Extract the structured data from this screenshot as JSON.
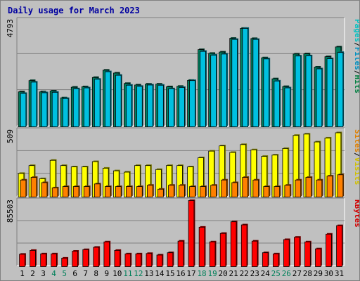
{
  "chart_data": {
    "type": "bar",
    "title": "Daily usage for March 2023",
    "days": [
      "1",
      "2",
      "3",
      "4",
      "5",
      "6",
      "7",
      "8",
      "9",
      "10",
      "11",
      "12",
      "13",
      "14",
      "15",
      "16",
      "17",
      "18",
      "19",
      "20",
      "21",
      "22",
      "23",
      "24",
      "25",
      "26",
      "27",
      "28",
      "29",
      "30",
      "31"
    ],
    "weekend_days": [
      4,
      5,
      11,
      12,
      18,
      19,
      25,
      26
    ],
    "panels": [
      {
        "id": "top",
        "ymax_label": "4793",
        "ymax": 4793,
        "legend": [
          {
            "text": "Pages",
            "color": "#00c0c0"
          },
          {
            "text": "/",
            "color": "#000000"
          },
          {
            "text": "Files",
            "color": "#0090c0"
          },
          {
            "text": "/",
            "color": "#000000"
          },
          {
            "text": "Hits",
            "color": "#008040"
          }
        ],
        "series": [
          {
            "name": "Hits",
            "color": "#008060",
            "values": [
              1580,
              2090,
              1580,
              1620,
              1310,
              1790,
              1810,
              2230,
              2560,
              2430,
              1960,
              1890,
              1930,
              1930,
              1810,
              1830,
              2100,
              3490,
              3320,
              3380,
              4000,
              4450,
              3990,
              3120,
              2170,
              1820,
              3290,
              3300,
              2700,
              3170,
              3610
            ]
          },
          {
            "name": "Files",
            "color": "#00c0e0",
            "values": [
              1510,
              2020,
              1540,
              1560,
              1280,
              1720,
              1760,
              2150,
              2490,
              2330,
              1880,
              1830,
              1890,
              1880,
              1720,
              1780,
              2090,
              3410,
              3240,
              3290,
              3950,
              4450,
              3950,
              3070,
              2070,
              1760,
              3200,
              3210,
              2620,
              3080,
              3360
            ]
          }
        ]
      },
      {
        "id": "middle",
        "ymax_label": "509",
        "ymax": 509,
        "legend": [
          {
            "text": "Sites",
            "color": "#e08000"
          },
          {
            "text": "/",
            "color": "#000000"
          },
          {
            "text": "Visits",
            "color": "#d0c000"
          }
        ],
        "series": [
          {
            "name": "Visits",
            "color": "#ffff00",
            "values": [
              180,
              240,
              140,
              280,
              240,
              230,
              230,
              270,
              220,
              200,
              190,
              240,
              240,
              210,
              240,
              240,
              230,
              300,
              350,
              390,
              340,
              400,
              360,
              310,
              320,
              370,
              470,
              480,
              420,
              450,
              490
            ]
          },
          {
            "name": "Sites",
            "color": "#ff8000",
            "values": [
              130,
              150,
              110,
              70,
              80,
              80,
              80,
              100,
              80,
              80,
              80,
              80,
              90,
              60,
              90,
              90,
              80,
              80,
              90,
              130,
              110,
              150,
              130,
              80,
              80,
              90,
              130,
              150,
              130,
              160,
              170
            ]
          }
        ]
      },
      {
        "id": "bottom",
        "ymax_label": "85503",
        "ymax": 85503,
        "legend": [
          {
            "text": "KBytes",
            "color": "#d00000"
          }
        ],
        "series": [
          {
            "name": "KBytes",
            "color": "#ff0000",
            "values": [
              16000,
              21000,
              16500,
              16500,
              11000,
              20000,
              22000,
              25000,
              32000,
              21000,
              16500,
              16500,
              17000,
              15000,
              18000,
              33000,
              85503,
              51000,
              32000,
              43000,
              58000,
              54000,
              33000,
              18000,
              16500,
              35000,
              38000,
              32000,
              23000,
              42000,
              53000
            ]
          }
        ]
      }
    ]
  }
}
